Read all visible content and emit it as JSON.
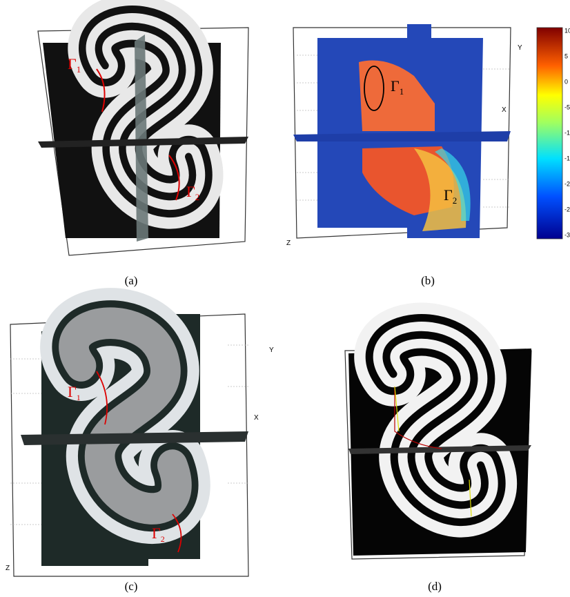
{
  "panels": [
    {
      "caption": "(a)",
      "curves": [
        {
          "symbol": "Γ",
          "sub": "1"
        },
        {
          "symbol": "Γ",
          "sub": "2"
        }
      ]
    },
    {
      "caption": "(b)",
      "curves": [
        {
          "symbol": "Γ",
          "sub": "1"
        },
        {
          "symbol": "Γ",
          "sub": "2"
        }
      ],
      "axes": [
        "Y",
        "X",
        "Z"
      ],
      "colorbar": [
        "10",
        "5",
        "0",
        "-5",
        "-1",
        "-1",
        "-2",
        "-2",
        "-3"
      ]
    },
    {
      "caption": "(c)",
      "curves": [
        {
          "symbol": "Γ",
          "sub": "1"
        },
        {
          "symbol": "Γ",
          "sub": "2"
        }
      ],
      "axes": [
        "Y",
        "X",
        "Z"
      ]
    },
    {
      "caption": "(d)"
    }
  ]
}
